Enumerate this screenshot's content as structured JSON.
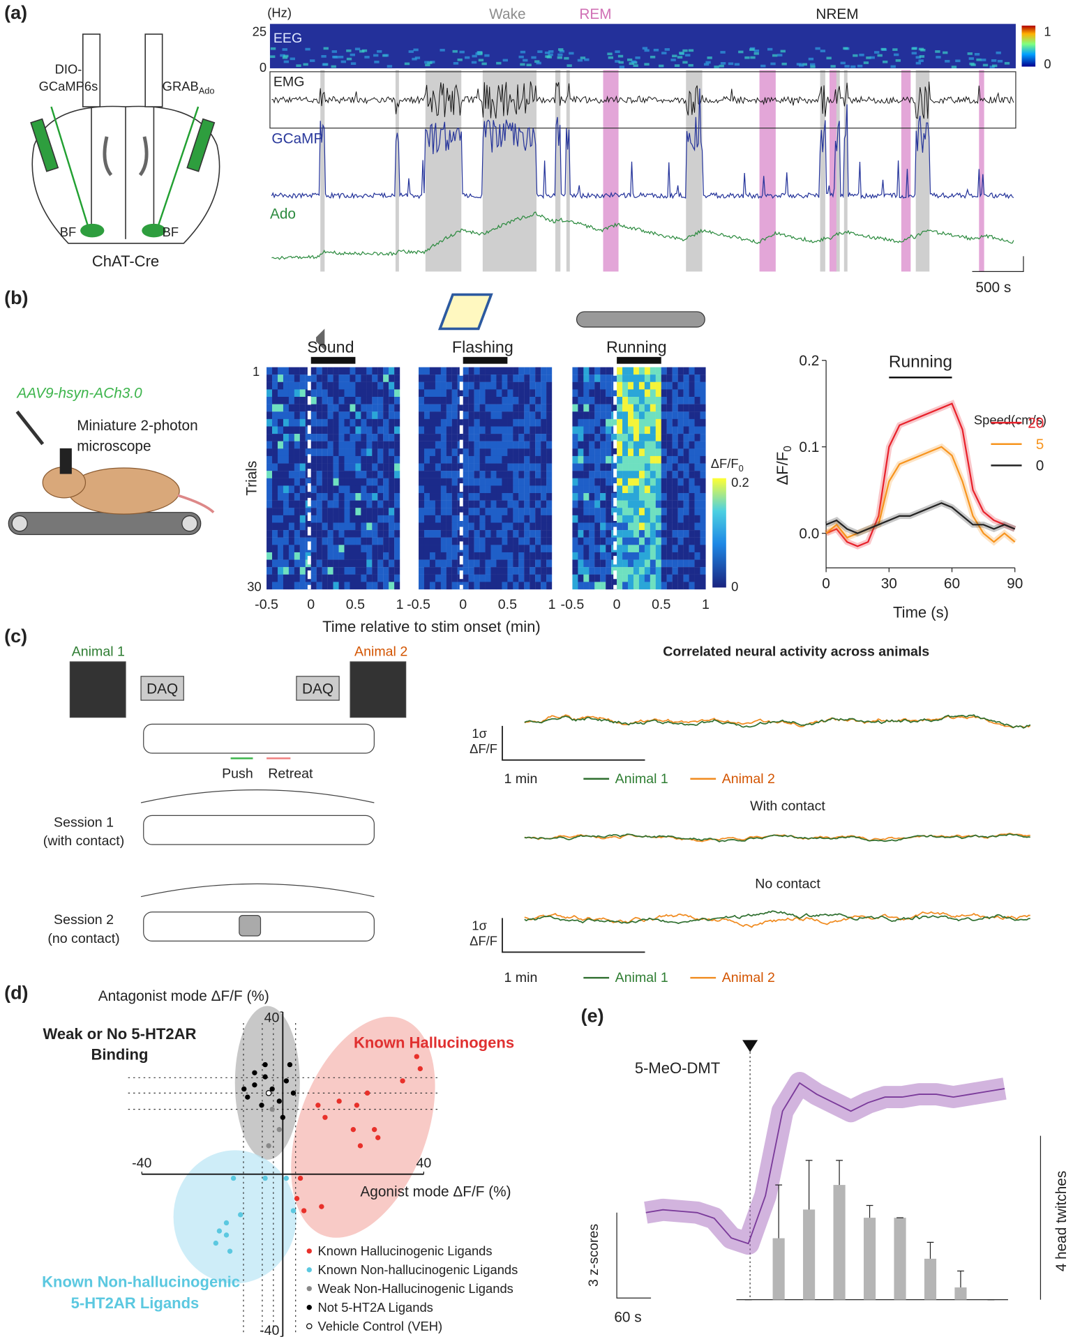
{
  "panel_a": {
    "label": "(a)",
    "injections": [
      "DIO-",
      "GCaMP6s",
      "GRAB",
      "Ado"
    ],
    "regions": [
      "BF",
      "BF"
    ],
    "mouse_line": "ChAT-Cre",
    "freq_unit": "(Hz)",
    "freq_ticks": [
      "25",
      "0"
    ],
    "states": [
      "Wake",
      "REM",
      "NREM"
    ],
    "tracks": [
      "EEG",
      "EMG",
      "GCaMP",
      "Ado"
    ],
    "colorbar_ticks": [
      "1",
      "0"
    ],
    "scale_bar": "500 s"
  },
  "panel_b": {
    "label": "(b)",
    "virus": "AAV9-hsyn-ACh3.0",
    "device": [
      "Miniature 2-photon",
      "microscope"
    ],
    "stimuli": [
      "Sound",
      "Flashing",
      "Running"
    ],
    "trial_ticks": [
      "1",
      "30"
    ],
    "trials_label": "Trials",
    "time_ticks": [
      "-0.5",
      "0",
      "0.5",
      "1"
    ],
    "time_label": "Time relative to stim onset (min)",
    "colorbar_label": [
      "ΔF/F",
      "0"
    ],
    "colorbar_ticks": [
      "0.2",
      "0"
    ]
  },
  "panel_c": {
    "label": "(c)",
    "animals": [
      "Animal 1",
      "Animal 2"
    ],
    "daq": [
      "DAQ",
      "DAQ"
    ],
    "moves": [
      "Push",
      "Retreat"
    ],
    "sessions": [
      "Session 1",
      "(with contact)",
      "Session 2",
      "(no contact)"
    ],
    "title": "Correlated neural activity across animals",
    "scale_labels": [
      "1σ",
      "ΔF/F",
      "1 min"
    ],
    "conditions": [
      "With contact",
      "No contact"
    ]
  },
  "panel_d": {
    "label": "(d)",
    "group_labels": [
      "Weak or No 5-HT2AR",
      "Binding",
      "Known Hallucinogens",
      "Known Non-hallucinogenic",
      "5-HT2AR Ligands"
    ]
  },
  "panel_e": {
    "label": "(e)",
    "annotation": "5-MeO-DMT",
    "scale_labels": [
      "3 z-scores",
      "60 s",
      "4 head twitches"
    ]
  },
  "chart_data": [
    {
      "type": "line",
      "title": "Running",
      "ylabel": "ΔF/F",
      "ylabel_sub": "0",
      "xlabel": "Time (s)",
      "legend_title": "Speed(cm/s)",
      "x": [
        0,
        5,
        10,
        15,
        20,
        25,
        30,
        35,
        40,
        45,
        50,
        55,
        60,
        65,
        70,
        75,
        80,
        85,
        90
      ],
      "xlim": [
        0,
        90
      ],
      "ylim": [
        -0.04,
        0.2
      ],
      "xticks": [
        0,
        30,
        60,
        90
      ],
      "yticks": [
        {
          "value": 0,
          "label": "0.0"
        },
        {
          "value": 0.1,
          "label": "0.1"
        },
        {
          "value": 0.2,
          "label": "0.2"
        }
      ],
      "stim_window": [
        30,
        60
      ],
      "series": [
        {
          "name": "20",
          "color": "#e8202a",
          "values": [
            0,
            0.005,
            -0.01,
            -0.015,
            -0.01,
            0.02,
            0.1,
            0.125,
            0.13,
            0.135,
            0.14,
            0.145,
            0.15,
            0.12,
            0.05,
            0.025,
            0.015,
            0.01,
            0.005
          ]
        },
        {
          "name": "5",
          "color": "#f7941d",
          "values": [
            0,
            0.01,
            -0.005,
            0,
            0.005,
            0.01,
            0.06,
            0.08,
            0.085,
            0.09,
            0.095,
            0.1,
            0.09,
            0.06,
            0.02,
            0,
            -0.01,
            0,
            -0.01
          ]
        },
        {
          "name": "0",
          "color": "#222222",
          "values": [
            0.01,
            0.015,
            0.005,
            0,
            0.005,
            0.01,
            0.015,
            0.02,
            0.02,
            0.025,
            0.03,
            0.035,
            0.03,
            0.02,
            0.01,
            0.01,
            0.005,
            0.01,
            0.005
          ]
        }
      ]
    },
    {
      "type": "scatter",
      "xlabel": "Agonist mode ΔF/F (%)",
      "ylabel": "Antagonist mode ΔF/F (%)",
      "xlim": [
        -40,
        40
      ],
      "ylim": [
        -40,
        40
      ],
      "xticks": [
        -40,
        40
      ],
      "yticks": [
        40,
        -40
      ],
      "series": [
        {
          "name": "Known Hallucinogenic Ligands",
          "color": "#e8302a",
          "x": [
            38,
            39,
            34,
            24,
            16,
            10,
            12,
            21,
            20,
            26,
            27,
            22,
            5,
            4,
            11,
            6
          ],
          "values": [
            29,
            26,
            23,
            20,
            18,
            17,
            14,
            17,
            11,
            11,
            9,
            7,
            -1,
            -6,
            -8,
            -9
          ]
        },
        {
          "name": "Known Non-hallucinogenic Ligands",
          "color": "#5bc8e0",
          "x": [
            -14,
            -5,
            -12,
            -16,
            -18,
            -16,
            -19,
            -15,
            3,
            1
          ],
          "values": [
            -1,
            -1,
            -10,
            -12,
            -14,
            -15,
            -17,
            -19,
            -9,
            -1
          ]
        },
        {
          "name": "Weak Non-Hallucinogenic Ligands",
          "color": "#888888",
          "x": [
            -4,
            -1,
            -3
          ],
          "values": [
            7,
            11,
            16
          ]
        },
        {
          "name": "Not 5-HT2A Ligands",
          "color": "#000000",
          "x": [
            -8,
            -5,
            -3,
            -10,
            -1,
            2,
            1,
            -6,
            -8,
            3,
            -11,
            -5,
            0
          ],
          "values": [
            22,
            24,
            21,
            19,
            18,
            27,
            23,
            17,
            25,
            20,
            21,
            27,
            14
          ]
        },
        {
          "name": "Vehicle Control (VEH)",
          "color": "#ffffff",
          "x": [
            -4
          ],
          "values": [
            20
          ]
        }
      ]
    },
    {
      "type": "bar",
      "color": "#b5b5b5",
      "values": [
        0,
        1.5,
        2.2,
        2.8,
        2.0,
        2.0,
        1.0,
        0.3,
        0
      ],
      "errors": [
        0,
        1.3,
        1.2,
        0.6,
        0.3,
        0,
        0.4,
        0.4,
        0
      ],
      "trace": {
        "color": "#9b59b6",
        "x": [
          -180,
          -150,
          -120,
          -90,
          -60,
          -30,
          0,
          30,
          60,
          90,
          120,
          150,
          180,
          210,
          240,
          270,
          300,
          330,
          360,
          390,
          420,
          450
        ],
        "values": [
          0,
          0.1,
          0.05,
          0,
          -0.2,
          -0.9,
          -1.1,
          0.6,
          3.6,
          4.6,
          4.2,
          3.9,
          3.6,
          3.9,
          4.1,
          4.1,
          4.2,
          4.2,
          4.1,
          4.2,
          4.3,
          4.4
        ]
      }
    }
  ]
}
